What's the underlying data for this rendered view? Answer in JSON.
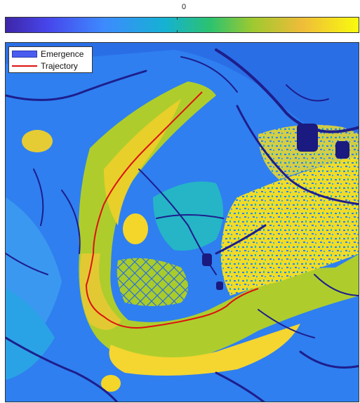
{
  "colorbar": {
    "tick_label": "0",
    "colormap": [
      "#3e26a8",
      "#4746eb",
      "#3d8bff",
      "#15b1d3",
      "#2cc26f",
      "#9ec930",
      "#efbc39",
      "#f9fb0e"
    ]
  },
  "legend": {
    "items": [
      {
        "label": "Emergence",
        "color": "#4a5cf0",
        "marker": "patch"
      },
      {
        "label": "Trajectory",
        "color": "#dd1111",
        "marker": "line"
      }
    ]
  },
  "colors": {
    "background": "#2f7ff0",
    "channels": "#1e1e8c",
    "high": "#f2e020",
    "trajectory": "#dd1111"
  }
}
